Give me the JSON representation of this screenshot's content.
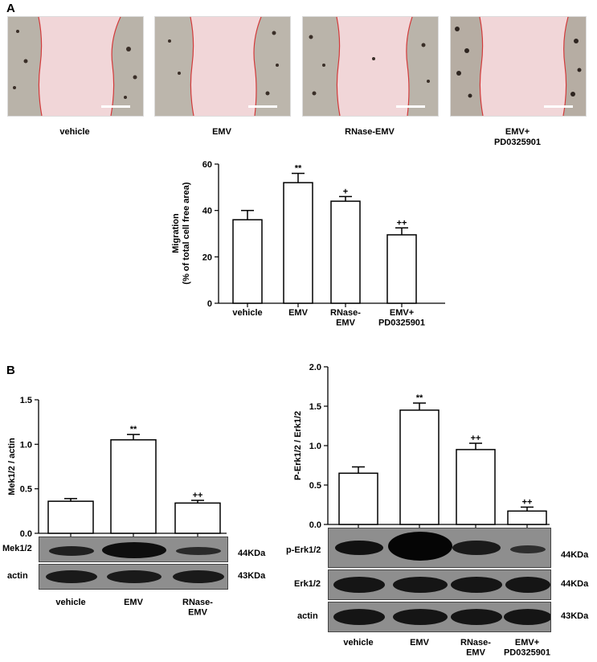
{
  "panel_a": {
    "letter": "A",
    "images": [
      {
        "caption": "vehicle"
      },
      {
        "caption": "EMV"
      },
      {
        "caption": "RNase-EMV"
      },
      {
        "caption": "EMV+\nPD0325901"
      }
    ]
  },
  "panel_b": {
    "letter": "B"
  },
  "chart_data": [
    {
      "type": "bar",
      "id": "migration",
      "categories": [
        "vehicle",
        "EMV",
        "RNase-\nEMV",
        "EMV+\nPD0325901"
      ],
      "values": [
        36,
        52,
        44,
        29.5
      ],
      "errors": [
        4,
        4,
        2,
        3
      ],
      "significance": [
        "",
        "**",
        "+",
        "++"
      ],
      "ylabel": "Migration\n(% of total cell free area)",
      "ylim": [
        0,
        60
      ],
      "yticks": [
        0,
        20,
        40,
        60
      ],
      "tick_labels": [
        "0",
        "20",
        "40",
        "60"
      ]
    },
    {
      "type": "bar",
      "id": "mek",
      "categories": [
        "vehicle",
        "EMV",
        "RNase-\nEMV"
      ],
      "values": [
        0.36,
        1.05,
        0.34
      ],
      "errors": [
        0.03,
        0.06,
        0.03
      ],
      "significance": [
        "",
        "**",
        "++"
      ],
      "ylabel": "Mek1/2 / actin",
      "ylim": [
        0,
        1.5
      ],
      "yticks": [
        0,
        0.5,
        1.0,
        1.5
      ],
      "tick_labels": [
        "0.0",
        "0.5",
        "1.0",
        "1.5"
      ]
    },
    {
      "type": "bar",
      "id": "erk",
      "categories": [
        "vehicle",
        "EMV",
        "RNase-\nEMV",
        "EMV+\nPD0325901"
      ],
      "values": [
        0.65,
        1.45,
        0.95,
        0.17
      ],
      "errors": [
        0.08,
        0.09,
        0.08,
        0.05
      ],
      "significance": [
        "",
        "**",
        "++",
        "++"
      ],
      "ylabel": "P-Erk1/2 / Erk1/2",
      "ylim": [
        0,
        2.0
      ],
      "yticks": [
        0,
        0.5,
        1.0,
        1.5,
        2.0
      ],
      "tick_labels": [
        "0.0",
        "0.5",
        "1.0",
        "1.5",
        "2.0"
      ]
    }
  ],
  "blots_left": [
    {
      "label": "Mek1/2",
      "kda": "44KDa"
    },
    {
      "label": "actin",
      "kda": "43KDa"
    }
  ],
  "blots_right": [
    {
      "label": "p-Erk1/2",
      "kda": "44KDa"
    },
    {
      "label": "Erk1/2",
      "kda": "44KDa"
    },
    {
      "label": "actin",
      "kda": "43KDa"
    }
  ]
}
